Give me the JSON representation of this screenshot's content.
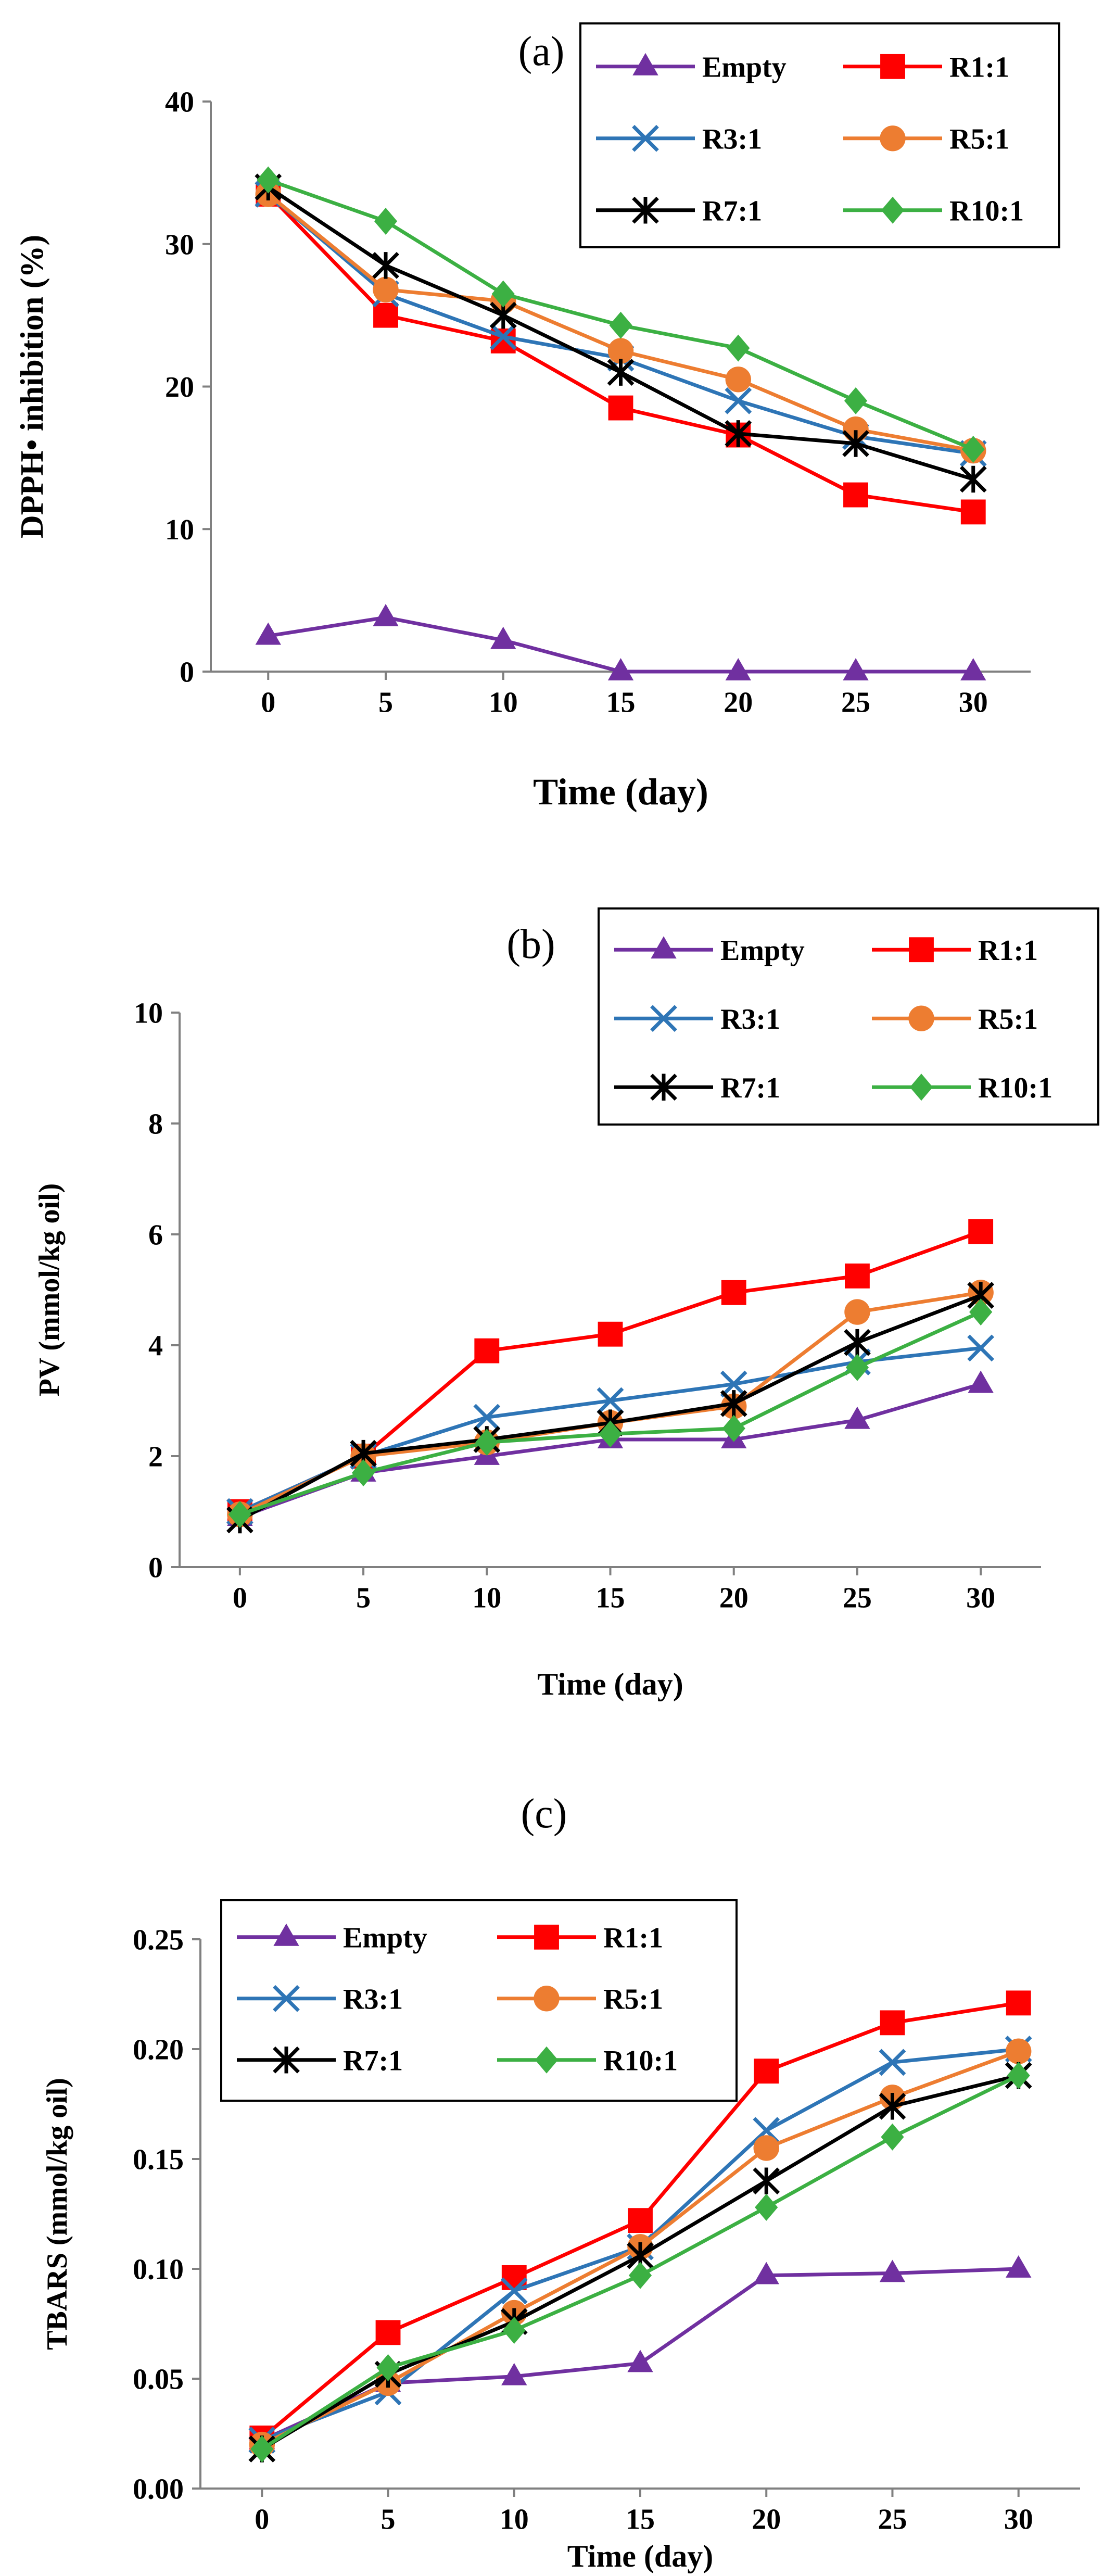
{
  "colors": {
    "Empty": "#7030A0",
    "R1:1": "#FF0000",
    "R3:1": "#2E75B6",
    "R5:1": "#ED7D31",
    "R7:1": "#000000",
    "R10:1": "#3CB043"
  },
  "chart_data": [
    {
      "type": "line",
      "panel_label": "(a)",
      "title": "",
      "xlabel": "Time (day)",
      "ylabel": "DPPH• inhibition (%)",
      "x": [
        0,
        5,
        10,
        15,
        20,
        25,
        30
      ],
      "xticks": [
        "0",
        "5",
        "10",
        "15",
        "20",
        "25",
        "30"
      ],
      "yticks": [
        "0",
        "10",
        "20",
        "30",
        "40"
      ],
      "ylim": [
        0,
        40
      ],
      "legend": [
        "Empty",
        "R1:1",
        "R3:1",
        "R5:1",
        "R7:1",
        "R10:1"
      ],
      "legend_position": "top-right",
      "series": [
        {
          "name": "Empty",
          "marker": "triangle",
          "values": [
            2.5,
            3.8,
            2.2,
            0,
            0,
            0,
            0
          ]
        },
        {
          "name": "R1:1",
          "marker": "square",
          "values": [
            33.5,
            25,
            23.2,
            18.5,
            16.6,
            12.4,
            11.2
          ]
        },
        {
          "name": "R3:1",
          "marker": "x",
          "values": [
            33.5,
            26.5,
            23.5,
            22,
            19,
            16.5,
            15.3
          ]
        },
        {
          "name": "R5:1",
          "marker": "circle",
          "values": [
            33.5,
            26.8,
            26,
            22.5,
            20.5,
            17,
            15.5
          ]
        },
        {
          "name": "R7:1",
          "marker": "star",
          "values": [
            34,
            28.5,
            25,
            21,
            16.7,
            16,
            13.5
          ]
        },
        {
          "name": "R10:1",
          "marker": "diamond",
          "values": [
            34.5,
            31.6,
            26.5,
            24.3,
            22.7,
            19,
            15.6
          ]
        }
      ]
    },
    {
      "type": "line",
      "panel_label": "(b)",
      "title": "",
      "xlabel": "Time (day)",
      "ylabel": "PV (mmol/kg oil)",
      "x": [
        0,
        5,
        10,
        15,
        20,
        25,
        30
      ],
      "xticks": [
        "0",
        "5",
        "10",
        "15",
        "20",
        "25",
        "30"
      ],
      "yticks": [
        "0",
        "2",
        "4",
        "6",
        "8",
        "10"
      ],
      "ylim": [
        0,
        10
      ],
      "legend": [
        "Empty",
        "R1:1",
        "R3:1",
        "R5:1",
        "R7:1",
        "R10:1"
      ],
      "legend_position": "top-right",
      "series": [
        {
          "name": "Empty",
          "marker": "triangle",
          "values": [
            0.9,
            1.7,
            2.0,
            2.3,
            2.3,
            2.65,
            3.3
          ]
        },
        {
          "name": "R1:1",
          "marker": "square",
          "values": [
            1.0,
            2.0,
            3.9,
            4.2,
            4.95,
            5.25,
            6.05
          ]
        },
        {
          "name": "R3:1",
          "marker": "x",
          "values": [
            1.0,
            2.0,
            2.7,
            3.0,
            3.3,
            3.7,
            3.95
          ]
        },
        {
          "name": "R5:1",
          "marker": "circle",
          "values": [
            0.95,
            2.0,
            2.25,
            2.6,
            2.9,
            4.6,
            4.95
          ]
        },
        {
          "name": "R7:1",
          "marker": "star",
          "values": [
            0.85,
            2.05,
            2.3,
            2.6,
            2.95,
            4.05,
            4.9
          ]
        },
        {
          "name": "R10:1",
          "marker": "diamond",
          "values": [
            0.95,
            1.7,
            2.25,
            2.4,
            2.5,
            3.6,
            4.6
          ]
        }
      ]
    },
    {
      "type": "line",
      "panel_label": "(c)",
      "title": "",
      "xlabel": "Time (day)",
      "ylabel": "TBARS (mmol/kg oil)",
      "x": [
        0,
        5,
        10,
        15,
        20,
        25,
        30
      ],
      "xticks": [
        "0",
        "5",
        "10",
        "15",
        "20",
        "25",
        "30"
      ],
      "yticks": [
        "0.00",
        "0.05",
        "0.10",
        "0.15",
        "0.20",
        "0.25"
      ],
      "ylim": [
        0,
        0.25
      ],
      "legend": [
        "Empty",
        "R1:1",
        "R3:1",
        "R5:1",
        "R7:1",
        "R10:1"
      ],
      "legend_position": "top-left",
      "series": [
        {
          "name": "Empty",
          "marker": "triangle",
          "values": [
            0.022,
            0.048,
            0.051,
            0.057,
            0.097,
            0.098,
            0.1
          ]
        },
        {
          "name": "R1:1",
          "marker": "square",
          "values": [
            0.023,
            0.071,
            0.096,
            0.122,
            0.19,
            0.212,
            0.221
          ]
        },
        {
          "name": "R3:1",
          "marker": "x",
          "values": [
            0.022,
            0.044,
            0.09,
            0.11,
            0.163,
            0.194,
            0.2
          ]
        },
        {
          "name": "R5:1",
          "marker": "circle",
          "values": [
            0.02,
            0.048,
            0.08,
            0.11,
            0.155,
            0.178,
            0.199
          ]
        },
        {
          "name": "R7:1",
          "marker": "star",
          "values": [
            0.018,
            0.052,
            0.076,
            0.106,
            0.14,
            0.174,
            0.188
          ]
        },
        {
          "name": "R10:1",
          "marker": "diamond",
          "values": [
            0.018,
            0.055,
            0.072,
            0.097,
            0.128,
            0.16,
            0.188
          ]
        }
      ]
    }
  ]
}
